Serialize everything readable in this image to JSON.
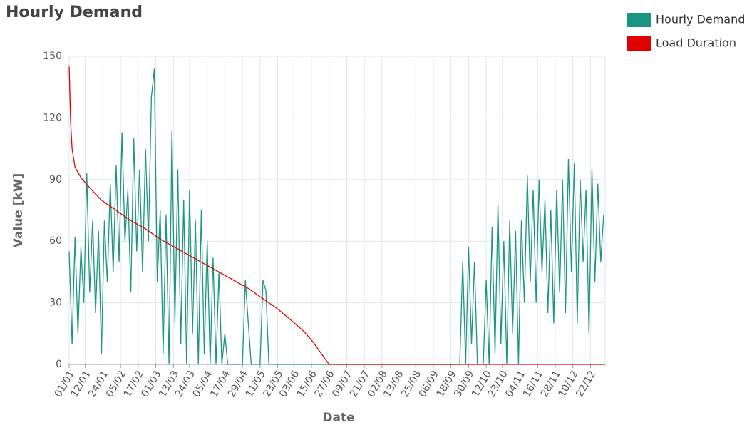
{
  "chart_data": {
    "type": "line",
    "title": "Hourly Demand",
    "x_label": "Date",
    "y_label": "Value [kW]",
    "xlim": [
      0,
      365
    ],
    "ylim": [
      0,
      150
    ],
    "yticks": [
      0,
      30,
      60,
      90,
      120,
      150
    ],
    "grid": true,
    "legend": "top-right",
    "xticks": [
      {
        "value": 0,
        "label": "01/01"
      },
      {
        "value": 11,
        "label": "12/01"
      },
      {
        "value": 23,
        "label": "24/01"
      },
      {
        "value": 35,
        "label": "05/02"
      },
      {
        "value": 47,
        "label": "17/02"
      },
      {
        "value": 59,
        "label": "01/03"
      },
      {
        "value": 71,
        "label": "13/03"
      },
      {
        "value": 82,
        "label": "24/03"
      },
      {
        "value": 94,
        "label": "05/04"
      },
      {
        "value": 106,
        "label": "17/04"
      },
      {
        "value": 118,
        "label": "29/04"
      },
      {
        "value": 130,
        "label": "11/05"
      },
      {
        "value": 142,
        "label": "23/05"
      },
      {
        "value": 153,
        "label": "03/06"
      },
      {
        "value": 165,
        "label": "15/06"
      },
      {
        "value": 177,
        "label": "27/06"
      },
      {
        "value": 189,
        "label": "09/07"
      },
      {
        "value": 201,
        "label": "21/07"
      },
      {
        "value": 213,
        "label": "02/08"
      },
      {
        "value": 224,
        "label": "13/08"
      },
      {
        "value": 236,
        "label": "25/08"
      },
      {
        "value": 248,
        "label": "06/09"
      },
      {
        "value": 260,
        "label": "18/09"
      },
      {
        "value": 272,
        "label": "30/09"
      },
      {
        "value": 284,
        "label": "12/10"
      },
      {
        "value": 295,
        "label": "23/10"
      },
      {
        "value": 307,
        "label": "04/11"
      },
      {
        "value": 319,
        "label": "16/11"
      },
      {
        "value": 331,
        "label": "28/11"
      },
      {
        "value": 343,
        "label": "10/12"
      },
      {
        "value": 355,
        "label": "22/12"
      }
    ],
    "series": [
      {
        "name": "Hourly Demand",
        "color": "#1a9680",
        "x": [
          0,
          2,
          4,
          6,
          8,
          10,
          12,
          14,
          16,
          18,
          20,
          22,
          24,
          26,
          28,
          30,
          32,
          34,
          36,
          38,
          40,
          42,
          44,
          46,
          48,
          50,
          52,
          54,
          56,
          58,
          60,
          62,
          64,
          66,
          68,
          70,
          72,
          74,
          76,
          78,
          80,
          82,
          84,
          86,
          88,
          90,
          92,
          94,
          96,
          98,
          100,
          102,
          104,
          106,
          108,
          110,
          112,
          114,
          116,
          118,
          120,
          122,
          124,
          126,
          128,
          130,
          132,
          134,
          136,
          138,
          140,
          142,
          144,
          146,
          148,
          150,
          152,
          154,
          156,
          158,
          160,
          162,
          164,
          166,
          168,
          170,
          172,
          174,
          176,
          178,
          180,
          182,
          184,
          186,
          188,
          190,
          192,
          194,
          196,
          198,
          200,
          202,
          204,
          206,
          208,
          210,
          212,
          214,
          216,
          218,
          220,
          222,
          224,
          226,
          228,
          230,
          232,
          234,
          236,
          238,
          240,
          242,
          244,
          246,
          248,
          250,
          252,
          254,
          256,
          258,
          260,
          262,
          264,
          266,
          268,
          270,
          272,
          274,
          276,
          278,
          280,
          282,
          284,
          286,
          288,
          290,
          292,
          294,
          296,
          298,
          300,
          302,
          304,
          306,
          308,
          310,
          312,
          314,
          316,
          318,
          320,
          322,
          324,
          326,
          328,
          330,
          332,
          334,
          336,
          338,
          340,
          342,
          344,
          346,
          348,
          350,
          352,
          354,
          356,
          358,
          360,
          362,
          364
        ],
        "values": [
          55,
          10,
          62,
          15,
          57,
          30,
          93,
          35,
          70,
          25,
          65,
          5,
          70,
          40,
          88,
          45,
          97,
          50,
          113,
          60,
          85,
          35,
          110,
          55,
          95,
          45,
          105,
          60,
          130,
          144,
          40,
          75,
          5,
          73,
          0,
          114,
          20,
          95,
          10,
          80,
          0,
          85,
          15,
          70,
          0,
          75,
          5,
          60,
          0,
          52,
          0,
          45,
          0,
          15,
          0,
          0,
          0,
          0,
          0,
          0,
          41,
          20,
          0,
          0,
          0,
          0,
          41,
          36,
          0,
          0,
          0,
          0,
          0,
          0,
          0,
          0,
          0,
          0,
          0,
          0,
          0,
          0,
          0,
          0,
          0,
          0,
          0,
          0,
          0,
          0,
          0,
          0,
          0,
          0,
          0,
          0,
          0,
          0,
          0,
          0,
          0,
          0,
          0,
          0,
          0,
          0,
          0,
          0,
          0,
          0,
          0,
          0,
          0,
          0,
          0,
          0,
          0,
          0,
          0,
          0,
          0,
          0,
          0,
          0,
          0,
          0,
          0,
          0,
          0,
          0,
          0,
          0,
          0,
          0,
          50,
          0,
          57,
          10,
          50,
          0,
          0,
          0,
          41,
          0,
          67,
          5,
          78,
          10,
          60,
          0,
          70,
          15,
          65,
          0,
          70,
          30,
          92,
          40,
          85,
          30,
          90,
          45,
          80,
          25,
          75,
          20,
          85,
          35,
          90,
          25,
          100,
          45,
          98,
          20,
          90,
          50,
          85,
          15,
          95,
          40,
          88,
          50,
          73
        ]
      },
      {
        "name": "Load Duration",
        "color": "#e00000",
        "x": [
          0,
          1,
          2,
          4,
          8,
          14,
          22,
          32,
          42,
          52,
          62,
          72,
          82,
          92,
          102,
          112,
          122,
          132,
          142,
          152,
          160,
          166,
          172,
          177,
          365
        ],
        "values": [
          145,
          118,
          105,
          96,
          91,
          86,
          80,
          75,
          70,
          66,
          61,
          57,
          53,
          49,
          45,
          41,
          37,
          32,
          27,
          21,
          16,
          11,
          5,
          0,
          0
        ]
      }
    ]
  }
}
